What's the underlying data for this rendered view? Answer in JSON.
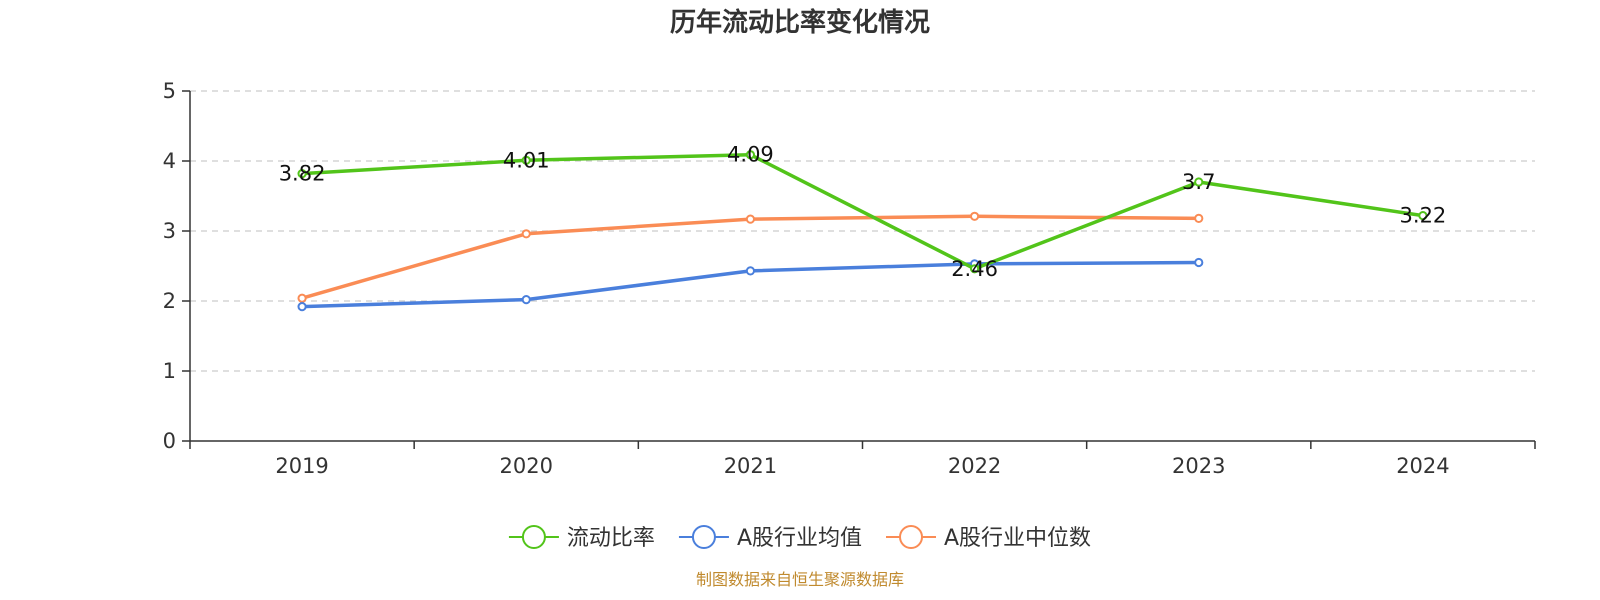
{
  "chart_data": {
    "type": "line",
    "title": "历年流动比率变化情况",
    "categories": [
      "2019",
      "2020",
      "2021",
      "2022",
      "2023",
      "2024"
    ],
    "ylim": [
      0,
      5
    ],
    "yticks": [
      "0",
      "1",
      "2",
      "3",
      "4",
      "5"
    ],
    "grid": true,
    "legend_position": "bottom",
    "series": [
      {
        "name": "流动比率",
        "color": "#52c41a",
        "values": [
          3.82,
          4.01,
          4.09,
          2.46,
          3.7,
          3.22
        ],
        "labels": [
          "3.82",
          "4.01",
          "4.09",
          "2.46",
          "3.7",
          "3.22"
        ]
      },
      {
        "name": "A股行业均值",
        "color": "#4a7fdc",
        "values": [
          1.92,
          2.02,
          2.43,
          2.53,
          2.55,
          null
        ]
      },
      {
        "name": "A股行业中位数",
        "color": "#fa8c55",
        "values": [
          2.04,
          2.96,
          3.17,
          3.21,
          3.18,
          null
        ]
      }
    ]
  },
  "source_text": "制图数据来自恒生聚源数据库",
  "source_color": "#c08a2e"
}
